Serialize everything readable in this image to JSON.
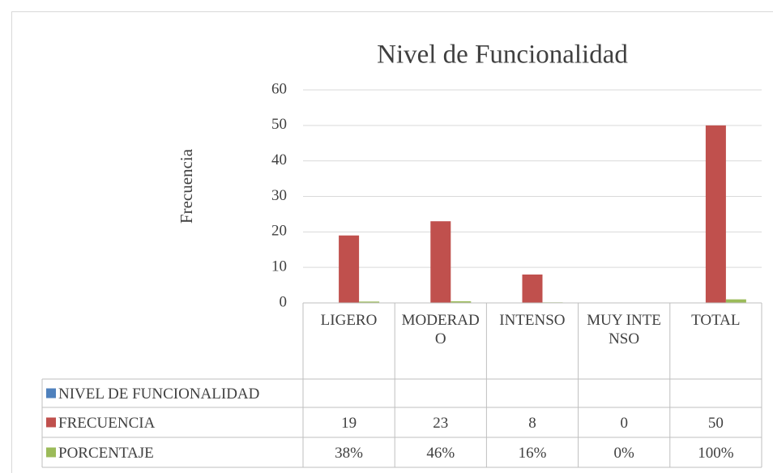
{
  "chart_data": {
    "type": "bar",
    "title": "Nivel de Funcionalidad",
    "y_label": "Frecuencia",
    "categories": [
      "LIGERO",
      "MODERADO",
      "INTENSO",
      "MUY INTENSO",
      "TOTAL"
    ],
    "series": [
      {
        "name": "NIVEL DE FUNCIONALIDAD",
        "color": "#4f81bd",
        "values": [
          null,
          null,
          null,
          null,
          null
        ]
      },
      {
        "name": "FRECUENCIA",
        "color": "#c0504d",
        "values": [
          19,
          23,
          8,
          0,
          50
        ]
      },
      {
        "name": "PORCENTAJE",
        "color": "#9bbb59",
        "values": [
          0.38,
          0.46,
          0.16,
          0,
          1
        ],
        "value_labels": [
          "38%",
          "46%",
          "16%",
          "0%",
          "100%"
        ]
      }
    ],
    "ylim": [
      0,
      60
    ],
    "yticks": [
      0,
      10,
      20,
      30,
      40,
      50,
      60
    ],
    "grid": true,
    "data_table": true
  }
}
